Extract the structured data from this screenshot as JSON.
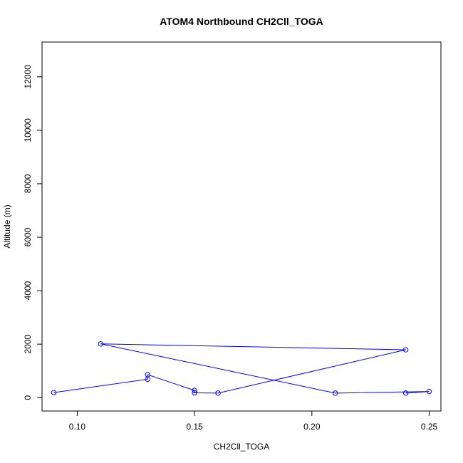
{
  "chart_data": {
    "type": "line",
    "title": "ATOM4 Northbound CH2Cll_TOGA",
    "xlabel": "CH2Cll_TOGA",
    "ylabel": "Altitude (m)",
    "xlim": [
      0.085,
      0.255
    ],
    "ylim": [
      -500,
      13300
    ],
    "xticks": [
      0.1,
      0.15,
      0.2,
      0.25
    ],
    "xtick_labels": [
      "0.10",
      "0.15",
      "0.20",
      "0.25"
    ],
    "yticks": [
      0,
      2000,
      4000,
      6000,
      8000,
      10000,
      12000
    ],
    "ytick_labels": [
      "0",
      "2000",
      "4000",
      "6000",
      "8000",
      "10000",
      "12000"
    ],
    "grid": false,
    "color": "#0000ff",
    "series": [
      {
        "x": [
          0.09,
          0.13,
          0.13,
          0.15,
          0.15,
          0.16,
          0.24,
          0.11,
          0.21,
          0.25,
          0.24
        ],
        "y": [
          190,
          690,
          860,
          270,
          180,
          170,
          1790,
          2010,
          170,
          230,
          170
        ]
      }
    ]
  }
}
